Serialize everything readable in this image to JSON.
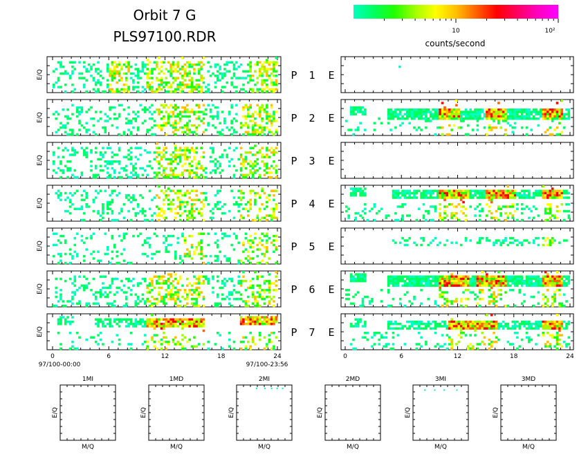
{
  "title": {
    "line1": "Orbit 7 G",
    "line2": "PLS97100.RDR"
  },
  "colorbar": {
    "tick_labels": [
      "10",
      "10²"
    ],
    "label": "counts/second",
    "colors": [
      "#00ffc0",
      "#00ff60",
      "#20ff00",
      "#a0ff00",
      "#ffff00",
      "#ffc000",
      "#ff6000",
      "#ff0000",
      "#ff0060",
      "#ff00c0",
      "#ff00ff"
    ]
  },
  "chart_data": [
    {
      "type": "heatmap",
      "name": "spectrogram-grid",
      "ylabel": "E/Q",
      "x_ticks": [
        "0",
        "6",
        "12",
        "18",
        "24"
      ],
      "xlim": [
        0,
        24
      ],
      "x_start_label": "97/100-00:00",
      "x_end_label": "97/100-23:56",
      "channels": [
        {
          "p_label": "P",
          "num": "1",
          "e_label": "E",
          "left": {
            "density": 0.28,
            "bands": [
              [
                0,
                24,
                0.08,
                0.95
              ]
            ],
            "hot": [
              [
                6,
                8
              ],
              [
                10,
                16
              ],
              [
                21,
                24
              ]
            ]
          },
          "right": {
            "density": 0.0,
            "bands": [],
            "hot": [],
            "dots": [
              [
                5.7,
                0.25
              ]
            ]
          }
        },
        {
          "p_label": "P",
          "num": "2",
          "e_label": "E",
          "left": {
            "density": 0.22,
            "bands": [
              [
                0,
                24,
                0.08,
                0.95
              ]
            ],
            "hot": [
              [
                11,
                16
              ],
              [
                20,
                24
              ]
            ]
          },
          "right": {
            "density": 0.85,
            "bands": [
              [
                4.5,
                24,
                0.2,
                0.55
              ],
              [
                0.5,
                2,
                0.15,
                0.4
              ]
            ],
            "hot": [
              [
                10,
                12
              ],
              [
                15,
                17
              ],
              [
                21,
                23
              ]
            ],
            "sparse_below": 0.15
          }
        },
        {
          "p_label": "P",
          "num": "3",
          "e_label": "E",
          "left": {
            "density": 0.24,
            "bands": [
              [
                0,
                24,
                0.08,
                0.95
              ]
            ],
            "hot": [
              [
                11,
                16
              ],
              [
                20,
                24
              ]
            ]
          },
          "right": {
            "density": 0.0,
            "bands": [],
            "hot": []
          }
        },
        {
          "p_label": "P",
          "num": "4",
          "e_label": "E",
          "left": {
            "density": 0.18,
            "bands": [
              [
                0,
                24,
                0.08,
                0.95
              ]
            ],
            "hot": [
              [
                11,
                16
              ],
              [
                20,
                24
              ]
            ]
          },
          "right": {
            "density": 0.8,
            "bands": [
              [
                4.8,
                24,
                0.1,
                0.35
              ],
              [
                0.5,
                2,
                0.05,
                0.3
              ]
            ],
            "hot": [
              [
                10,
                13
              ],
              [
                15,
                18
              ],
              [
                21,
                23
              ]
            ],
            "sparse_below": 0.35
          }
        },
        {
          "p_label": "P",
          "num": "5",
          "e_label": "E",
          "left": {
            "density": 0.14,
            "bands": [
              [
                0,
                24,
                0.08,
                0.95
              ]
            ],
            "hot": [
              [
                14,
                16
              ],
              [
                20,
                24
              ]
            ]
          },
          "right": {
            "density": 0.25,
            "bands": [
              [
                5,
                24,
                0.25,
                0.45
              ]
            ],
            "hot": [
              [
                21,
                22
              ]
            ],
            "sparse_below": 0.0
          }
        },
        {
          "p_label": "P",
          "num": "6",
          "e_label": "E",
          "left": {
            "density": 0.2,
            "bands": [
              [
                0,
                24,
                0.08,
                0.95
              ]
            ],
            "hot": [
              [
                10,
                16
              ],
              [
                20,
                24
              ]
            ]
          },
          "right": {
            "density": 0.9,
            "bands": [
              [
                4.5,
                24,
                0.1,
                0.4
              ],
              [
                0.5,
                2,
                0.05,
                0.3
              ]
            ],
            "hot": [
              [
                10,
                13
              ],
              [
                14,
                17
              ],
              [
                21,
                23
              ]
            ],
            "sparse_below": 0.3
          }
        },
        {
          "p_label": "P",
          "num": "7",
          "e_label": "E",
          "left": {
            "density": 0.55,
            "bands": [
              [
                4.5,
                16,
                0.1,
                0.35
              ],
              [
                0.5,
                2,
                0.05,
                0.3
              ],
              [
                20,
                24,
                0.05,
                0.3
              ]
            ],
            "hot": [
              [
                10,
                16
              ],
              [
                20,
                24
              ]
            ],
            "sparse_below": 0.2
          },
          "right": {
            "density": 0.6,
            "bands": [
              [
                4.5,
                24,
                0.15,
                0.4
              ],
              [
                0.5,
                2,
                0.1,
                0.35
              ]
            ],
            "hot": [
              [
                11,
                16
              ],
              [
                21,
                23
              ]
            ],
            "sparse_below": 0.3
          }
        }
      ]
    },
    {
      "type": "heatmap",
      "name": "mass-per-charge-panels",
      "xlabel": "M/Q",
      "ylabel": "E/Q",
      "panels": [
        {
          "title": "1MI",
          "dots": []
        },
        {
          "title": "1MD",
          "dots": []
        },
        {
          "title": "2MI",
          "dots": [
            [
              0.35,
              0.05
            ],
            [
              0.5,
              0.05
            ],
            [
              0.62,
              0.05
            ],
            [
              0.72,
              0.05
            ],
            [
              0.82,
              0.05
            ]
          ]
        },
        {
          "title": "2MD",
          "dots": []
        },
        {
          "title": "3MI",
          "dots": [
            [
              0.2,
              0.08
            ],
            [
              0.38,
              0.08
            ],
            [
              0.55,
              0.08
            ],
            [
              0.78,
              0.08
            ]
          ]
        },
        {
          "title": "3MD",
          "dots": []
        }
      ]
    }
  ]
}
